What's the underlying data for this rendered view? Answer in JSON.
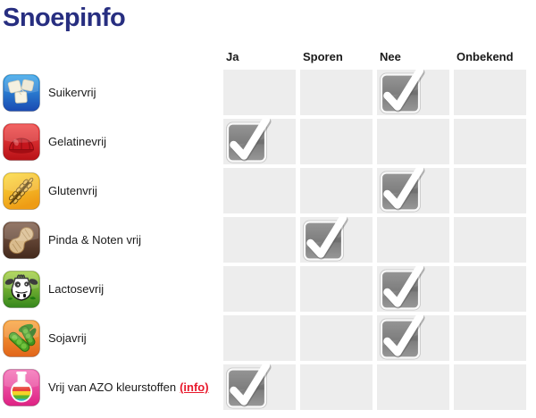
{
  "page": {
    "title": "Snoepinfo"
  },
  "colors": {
    "title": "#272e80",
    "link": "#e8192c",
    "cell_background": "#ededed",
    "header_text": "#1a1a1a",
    "label_text": "#1a1a1a",
    "check_box": "#7b7b7b",
    "check_mark": "#ffffff"
  },
  "table": {
    "columns": [
      {
        "key": "ja",
        "label": "Ja"
      },
      {
        "key": "sporen",
        "label": "Sporen"
      },
      {
        "key": "nee",
        "label": "Nee"
      },
      {
        "key": "onbekend",
        "label": "Onbekend"
      }
    ],
    "rows": [
      {
        "icon": "sugar-cubes-icon",
        "label": "Suikervrij",
        "checked": "nee"
      },
      {
        "icon": "jelly-icon",
        "label": "Gelatinevrij",
        "checked": "ja"
      },
      {
        "icon": "wheat-ear-icon",
        "label": "Glutenvrij",
        "checked": "nee"
      },
      {
        "icon": "peanut-icon",
        "label": "Pinda & Noten vrij",
        "checked": "sporen"
      },
      {
        "icon": "cow-icon",
        "label": "Lactosevrij",
        "checked": "nee"
      },
      {
        "icon": "soy-pods-icon",
        "label": "Sojavrij",
        "checked": "nee"
      },
      {
        "icon": "flask-icon",
        "label": "Vrij van AZO kleurstoffen",
        "link_label": "(info)",
        "checked": "ja"
      }
    ]
  }
}
